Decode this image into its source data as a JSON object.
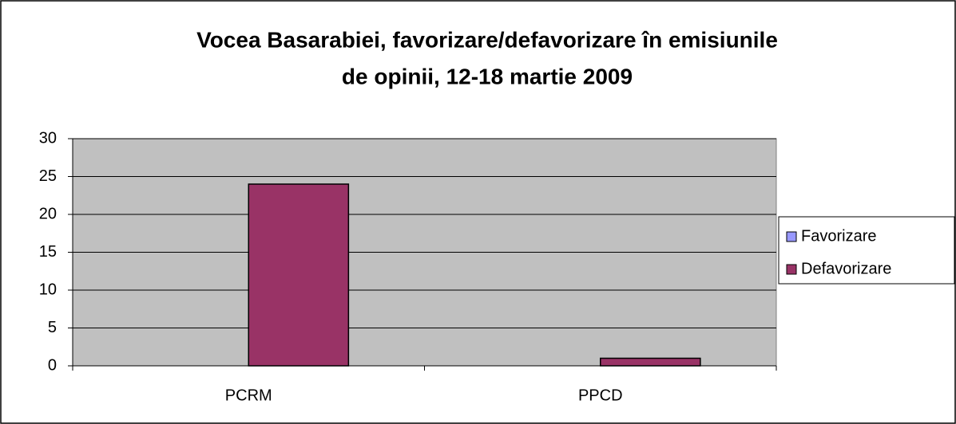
{
  "chart_data": {
    "type": "bar",
    "title": [
      "Vocea Basarabiei,  favorizare/defavorizare în emisiunile",
      "de opinii, 12-18 martie 2009"
    ],
    "categories": [
      "PCRM",
      "PPCD"
    ],
    "series": [
      {
        "name": "Favorizare",
        "color": "#9999ff",
        "values": [
          0,
          0
        ]
      },
      {
        "name": "Defavorizare",
        "color": "#993366",
        "values": [
          24,
          1
        ]
      }
    ],
    "ylim": [
      0,
      30
    ],
    "yticks": [
      0,
      5,
      10,
      15,
      20,
      25,
      30
    ],
    "grid": true,
    "legend": "right"
  }
}
